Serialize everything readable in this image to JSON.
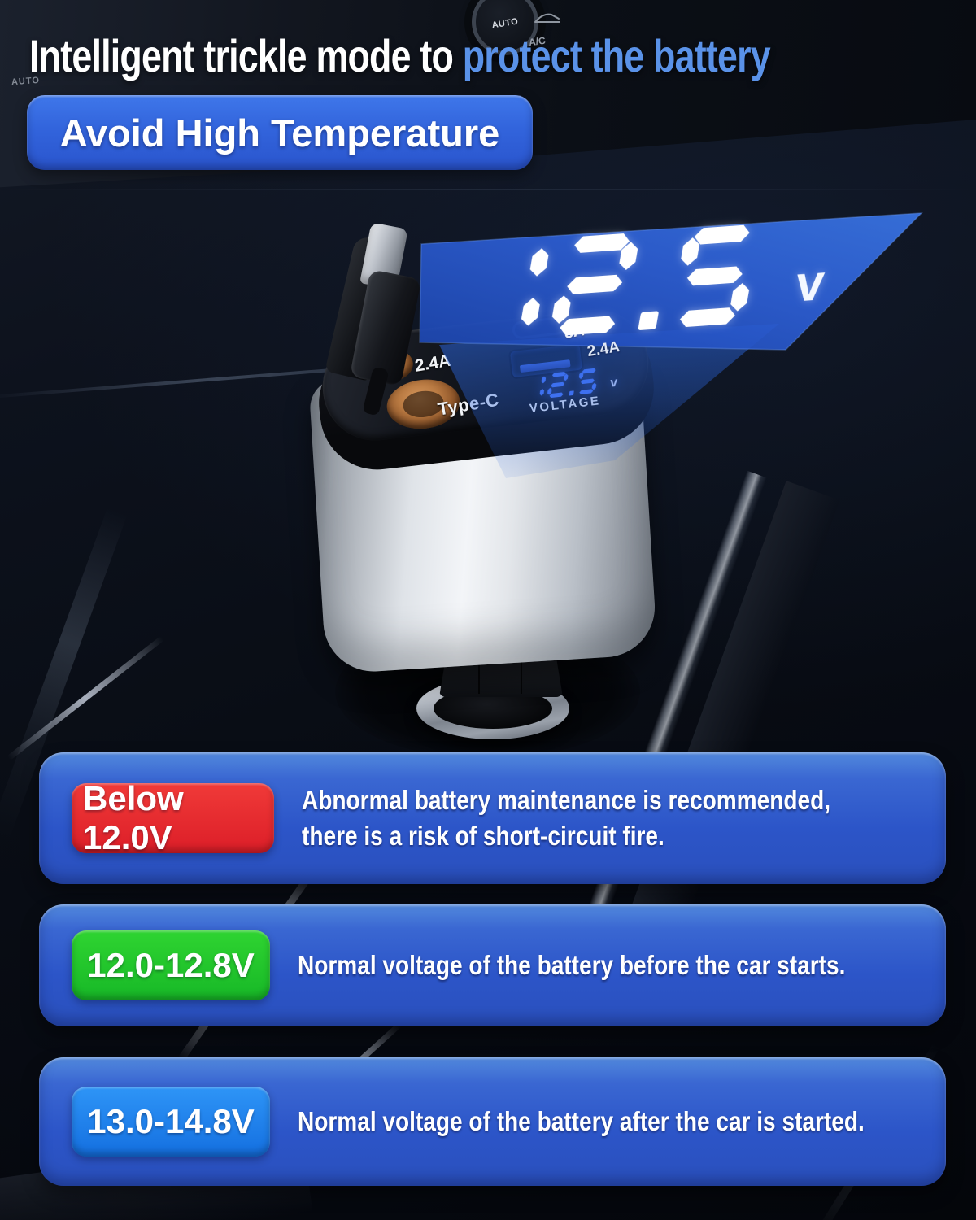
{
  "title": {
    "part_white": "Intelligent trickle mode to",
    "part_blue": " protect the battery"
  },
  "heading_badge": "Avoid High Temperature",
  "dashboard": {
    "knob_label": "AUTO",
    "ac_label": "A/C",
    "left_label": "AUTO"
  },
  "product": {
    "floating_display": {
      "value": "12.5",
      "unit": "v"
    },
    "labels": {
      "usb_left_amp": "2.4A",
      "type_c": "Type-C",
      "type_c_amp": "3A",
      "usb_right_amp": "2.4A",
      "meter_caption": "VOLTAGE"
    },
    "meter": {
      "value": "12.5",
      "unit": "v"
    }
  },
  "cards": [
    {
      "badge": "Below 12.0V",
      "badge_color": "linear-gradient(180deg,#f03a38,#dc1e28)",
      "text": "Abnormal battery maintenance is recommended, there is a risk of short-circuit fire."
    },
    {
      "badge": "12.0-12.8V",
      "badge_color": "linear-gradient(180deg,#2fd431,#17b827)",
      "text": "Normal voltage of the battery before the car starts."
    },
    {
      "badge": "13.0-14.8V",
      "badge_color": "linear-gradient(180deg,#2e95f7,#146fe0)",
      "text": "Normal voltage of the battery after the car is started."
    }
  ],
  "colors": {
    "accent_blue": "#5a92e8",
    "display_big": "#ffffff",
    "display_small": "#4a79ff"
  }
}
